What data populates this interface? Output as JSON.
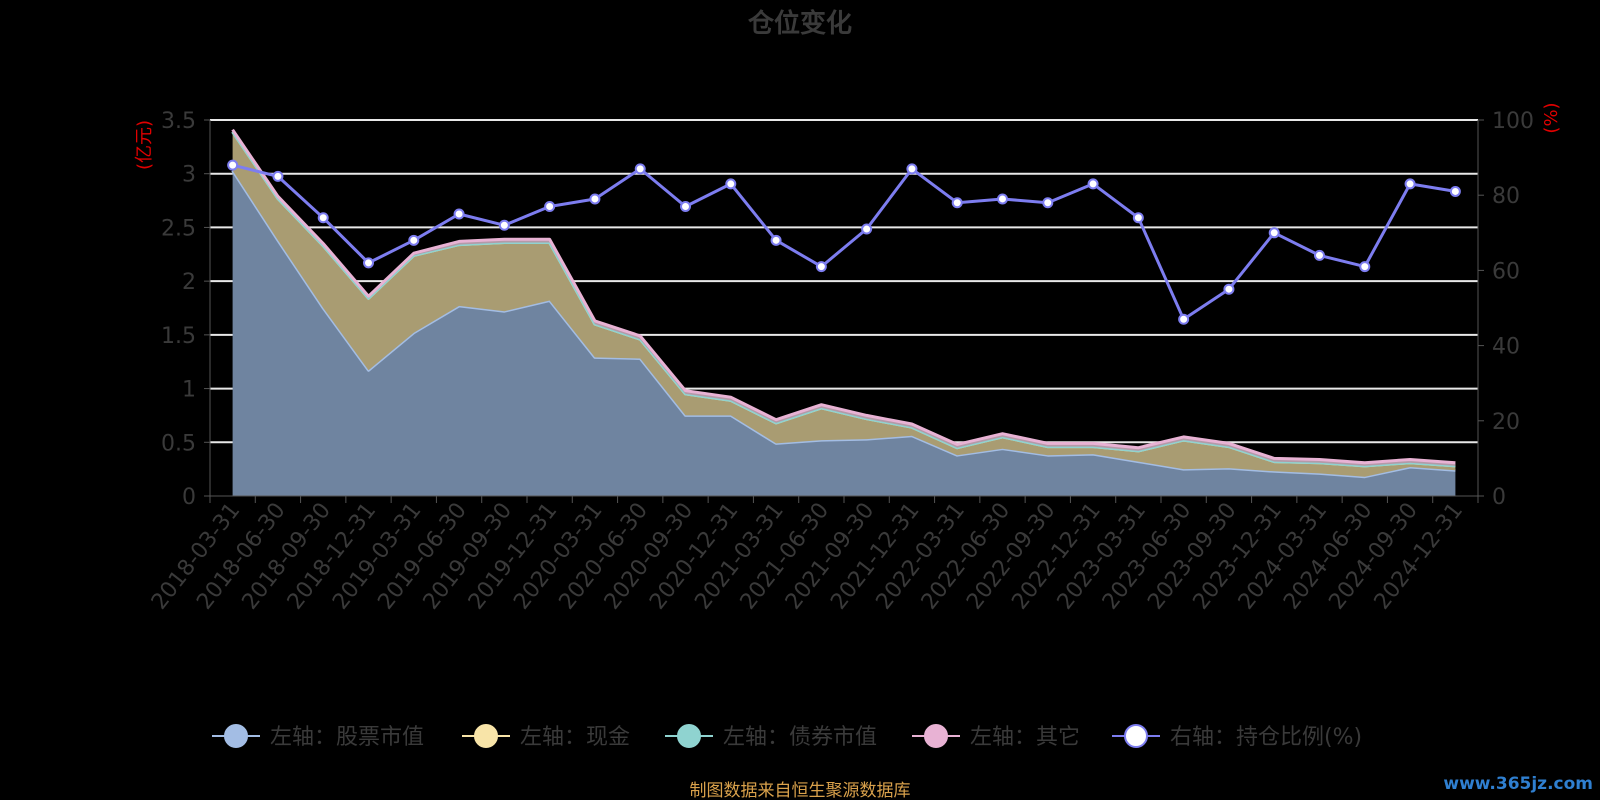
{
  "chart_data": {
    "type": "area",
    "title": "仓位变化",
    "left_axis_unit": "(亿元)",
    "right_axis_unit": "(%)",
    "categories": [
      "2018-03-31",
      "2018-06-30",
      "2018-09-30",
      "2018-12-31",
      "2019-03-31",
      "2019-06-30",
      "2019-09-30",
      "2019-12-31",
      "2020-03-31",
      "2020-06-30",
      "2020-09-30",
      "2020-12-31",
      "2021-03-31",
      "2021-06-30",
      "2021-09-30",
      "2021-12-31",
      "2022-03-31",
      "2022-06-30",
      "2022-09-30",
      "2022-12-31",
      "2023-03-31",
      "2023-06-30",
      "2023-09-30",
      "2023-12-31",
      "2024-03-31",
      "2024-06-30",
      "2024-09-30",
      "2024-12-31"
    ],
    "x_tick_labels": [
      "2018-03-31",
      "2018-06-30",
      "2018-09-30",
      "2018-12-31",
      "2019-03-31",
      "2019-06-30",
      "2019-09-30",
      "2019-12-31",
      "2020-03-31",
      "2020-06-30",
      "2020-09-30",
      "2020-12-31",
      "2021-03-31",
      "2021-06-30",
      "2021-09-30",
      "2021-12-31",
      "2022-03-31",
      "2022-06-30",
      "2022-09-30",
      "2022-12-31",
      "2023-03-31",
      "2023-06-30",
      "2023-09-30",
      "2023-12-31",
      "2024-03-31",
      "2024-06-30",
      "2024-09-30",
      "2024-12-31"
    ],
    "ylim_left": [
      0,
      3.5
    ],
    "yticks_left": [
      "0",
      "0.5",
      "1",
      "1.5",
      "2",
      "2.5",
      "3",
      "3.5"
    ],
    "ylim_right": [
      0,
      100
    ],
    "yticks_right": [
      "0",
      "20",
      "40",
      "60",
      "80",
      "100"
    ],
    "grid": true,
    "legend_position": "bottom",
    "series": [
      {
        "name": "左轴：股票市值",
        "axis": "left",
        "stacked": true,
        "color": "#a3bde4",
        "values": [
          3.03,
          2.38,
          1.75,
          1.17,
          1.52,
          1.77,
          1.72,
          1.82,
          1.29,
          1.28,
          0.75,
          0.75,
          0.49,
          0.52,
          0.53,
          0.56,
          0.38,
          0.44,
          0.38,
          0.39,
          0.32,
          0.25,
          0.26,
          0.23,
          0.21,
          0.18,
          0.27,
          0.24
        ]
      },
      {
        "name": "左轴：现金",
        "axis": "left",
        "stacked": true,
        "color": "#f8e4a8",
        "values": [
          0.36,
          0.39,
          0.58,
          0.67,
          0.72,
          0.57,
          0.64,
          0.54,
          0.31,
          0.18,
          0.2,
          0.14,
          0.19,
          0.3,
          0.19,
          0.08,
          0.07,
          0.11,
          0.08,
          0.07,
          0.1,
          0.27,
          0.2,
          0.09,
          0.1,
          0.1,
          0.04,
          0.04
        ]
      },
      {
        "name": "左轴：债券市值",
        "axis": "left",
        "stacked": true,
        "color": "#8fd3d0",
        "values": [
          0,
          0,
          0,
          0,
          0,
          0,
          0,
          0,
          0,
          0,
          0,
          0,
          0,
          0,
          0,
          0,
          0,
          0,
          0,
          0,
          0,
          0,
          0,
          0,
          0,
          0,
          0,
          0
        ]
      },
      {
        "name": "左轴：其它",
        "axis": "left",
        "stacked": true,
        "color": "#e8b2d4",
        "values": [
          0.02,
          0.02,
          0.02,
          0.02,
          0.02,
          0.03,
          0.03,
          0.03,
          0.03,
          0.03,
          0.03,
          0.03,
          0.03,
          0.03,
          0.03,
          0.03,
          0.03,
          0.03,
          0.03,
          0.03,
          0.03,
          0.03,
          0.03,
          0.03,
          0.03,
          0.03,
          0.03,
          0.03
        ]
      },
      {
        "name": "右轴：持仓比例(%)",
        "axis": "right",
        "color": "#7d7df0",
        "values": [
          88,
          85,
          74,
          62,
          68,
          75,
          72,
          77,
          79,
          87,
          77,
          83,
          68,
          61,
          71,
          87,
          78,
          79,
          78,
          83,
          74,
          47,
          55,
          70,
          64,
          61,
          83,
          81
        ]
      }
    ]
  },
  "source_note": "制图数据来自恒生聚源数据库",
  "watermark": "www.365jz.com"
}
